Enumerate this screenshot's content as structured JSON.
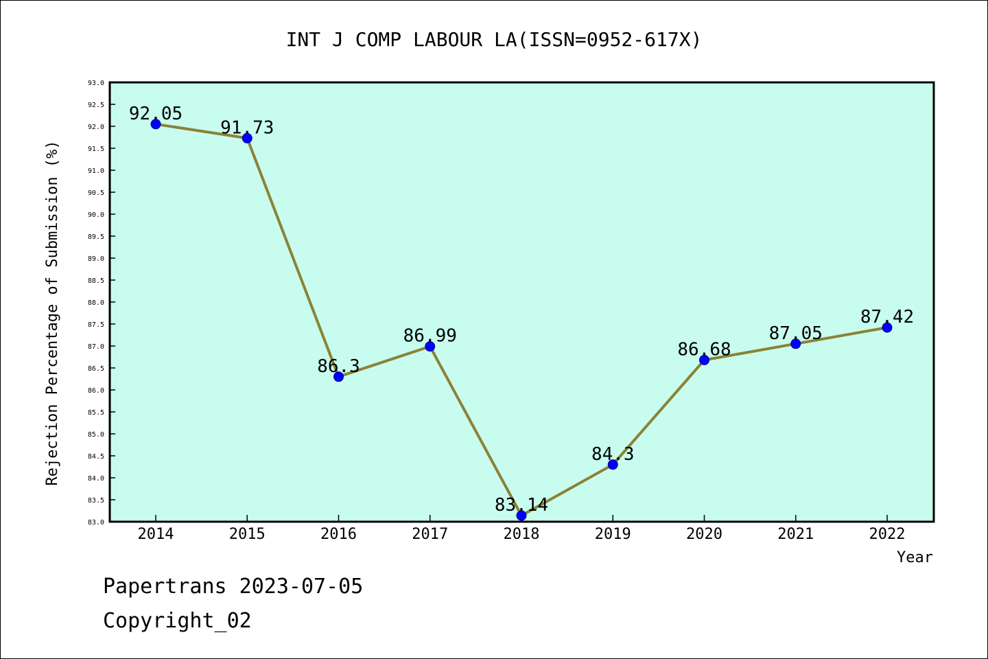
{
  "chart_data": {
    "type": "line",
    "title": "INT J COMP LABOUR LA(ISSN=0952-617X)",
    "xlabel": "Year",
    "ylabel": "Rejection Percentage of Submission (%)",
    "categories": [
      "2014",
      "2015",
      "2016",
      "2017",
      "2018",
      "2019",
      "2020",
      "2021",
      "2022"
    ],
    "values": [
      92.05,
      91.73,
      86.3,
      86.99,
      83.14,
      84.3,
      86.68,
      87.05,
      87.42
    ],
    "data_labels": [
      "92.05",
      "91.73",
      "86.3",
      "86.99",
      "83.14",
      "84.3",
      "86.68",
      "87.05",
      "87.42"
    ],
    "ylim": [
      83.0,
      93.0
    ],
    "yticks": [
      "83.0",
      "83.5",
      "84.0",
      "84.5",
      "85.0",
      "85.5",
      "86.0",
      "86.5",
      "87.0",
      "87.5",
      "88.0",
      "88.5",
      "89.0",
      "89.5",
      "90.0",
      "90.5",
      "91.0",
      "91.5",
      "92.0",
      "92.5",
      "93.0"
    ],
    "grid": false,
    "colors": {
      "plot_background": "#c8fcee",
      "line": "#8b8236",
      "marker": "#0000ff"
    }
  },
  "footer": {
    "line1": "Papertrans 2023-07-05",
    "line2": "Copyright_02"
  }
}
